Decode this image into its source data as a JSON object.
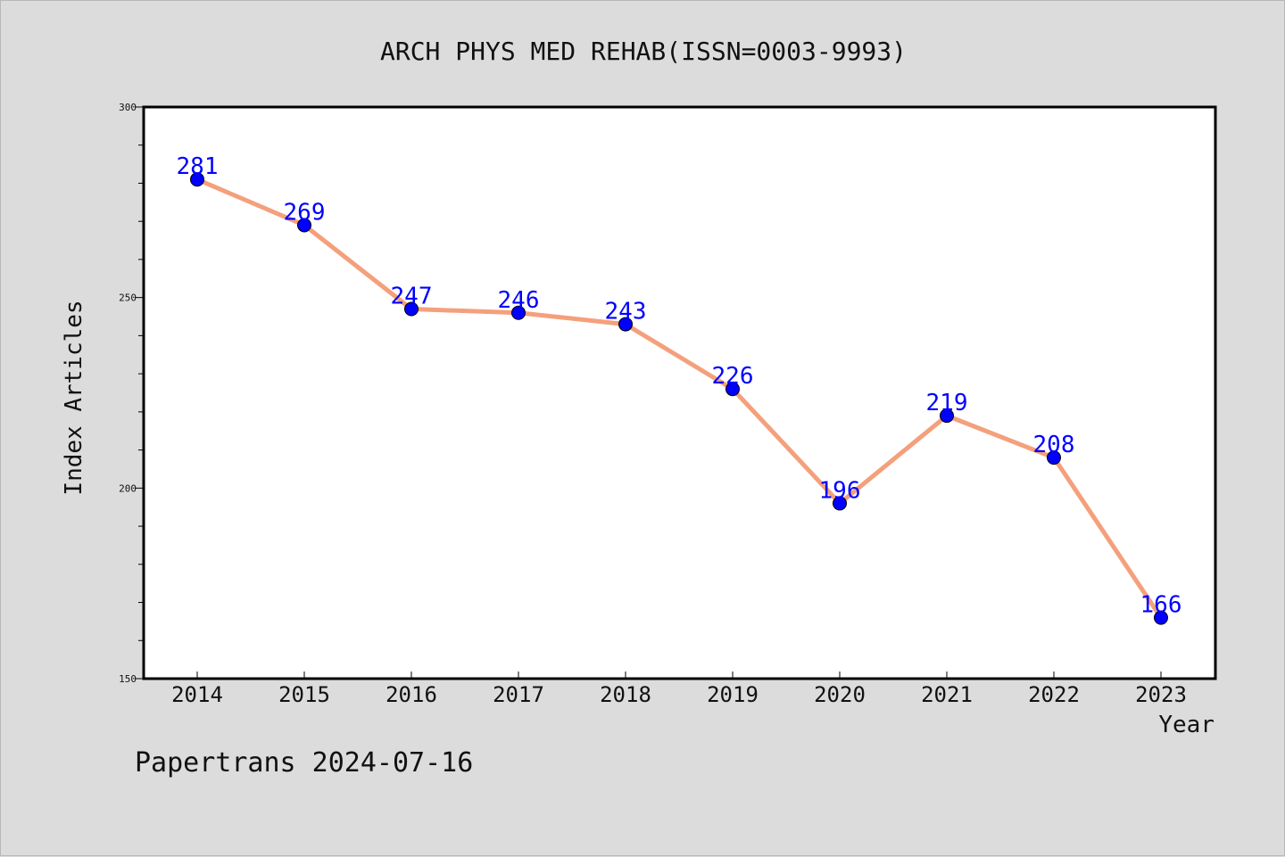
{
  "chart_data": {
    "type": "line",
    "title": "ARCH PHYS MED REHAB(ISSN=0003-9993)",
    "xlabel": "Year",
    "ylabel": "Index Articles",
    "categories": [
      "2014",
      "2015",
      "2016",
      "2017",
      "2018",
      "2019",
      "2020",
      "2021",
      "2022",
      "2023"
    ],
    "values": [
      281,
      269,
      247,
      246,
      243,
      226,
      196,
      219,
      208,
      166
    ],
    "ylim": [
      150,
      300
    ],
    "yticks": [
      "150",
      "200",
      "250",
      "300"
    ],
    "grid": false,
    "line_color": "#f4a07c",
    "marker_color": "#0000ff",
    "label_color": "#0000ff"
  },
  "footer": {
    "text": "Papertrans 2024-07-16"
  }
}
